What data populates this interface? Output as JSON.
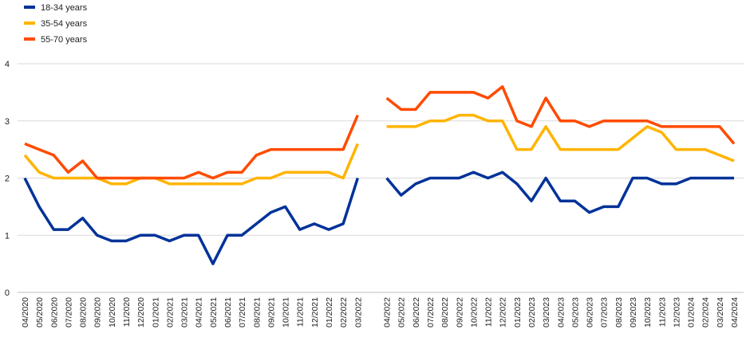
{
  "chart_data": {
    "type": "line",
    "categories": [
      "04/2020",
      "05/2020",
      "06/2020",
      "07/2020",
      "08/2020",
      "09/2020",
      "10/2020",
      "11/2020",
      "12/2020",
      "01/2021",
      "02/2021",
      "03/2021",
      "04/2021",
      "05/2021",
      "06/2021",
      "07/2021",
      "08/2021",
      "09/2021",
      "10/2021",
      "11/2021",
      "12/2021",
      "01/2022",
      "02/2022",
      "03/2022",
      null,
      "04/2022",
      "05/2022",
      "06/2022",
      "07/2022",
      "08/2022",
      "09/2022",
      "10/2022",
      "11/2022",
      "12/2022",
      "01/2023",
      "02/2023",
      "03/2023",
      "04/2023",
      "05/2023",
      "06/2023",
      "07/2023",
      "08/2023",
      "09/2023",
      "10/2023",
      "11/2023",
      "12/2023",
      "01/2024",
      "02/2024",
      "03/2024",
      "04/2024"
    ],
    "series": [
      {
        "name": "18-34 years",
        "color": "#003299",
        "values": [
          2.0,
          1.5,
          1.1,
          1.1,
          1.3,
          1.0,
          0.9,
          0.9,
          1.0,
          1.0,
          0.9,
          1.0,
          1.0,
          0.5,
          1.0,
          1.0,
          1.2,
          1.4,
          1.5,
          1.1,
          1.2,
          1.1,
          1.2,
          2.0,
          null,
          2.0,
          1.7,
          1.9,
          2.0,
          2.0,
          2.0,
          2.1,
          2.0,
          2.1,
          1.9,
          1.6,
          2.0,
          1.6,
          1.6,
          1.4,
          1.5,
          1.5,
          2.0,
          2.0,
          1.9,
          1.9,
          2.0,
          2.0,
          2.0,
          2.0
        ]
      },
      {
        "name": "35-54 years",
        "color": "#ffb400",
        "values": [
          2.4,
          2.1,
          2.0,
          2.0,
          2.0,
          2.0,
          1.9,
          1.9,
          2.0,
          2.0,
          1.9,
          1.9,
          1.9,
          1.9,
          1.9,
          1.9,
          2.0,
          2.0,
          2.1,
          2.1,
          2.1,
          2.1,
          2.0,
          2.6,
          null,
          2.9,
          2.9,
          2.9,
          3.0,
          3.0,
          3.1,
          3.1,
          3.0,
          3.0,
          2.5,
          2.5,
          2.9,
          2.5,
          2.5,
          2.5,
          2.5,
          2.5,
          2.7,
          2.9,
          2.8,
          2.5,
          2.5,
          2.5,
          2.4,
          2.3
        ]
      },
      {
        "name": "55-70 years",
        "color": "#ff4b00",
        "values": [
          2.6,
          2.5,
          2.4,
          2.1,
          2.3,
          2.0,
          2.0,
          2.0,
          2.0,
          2.0,
          2.0,
          2.0,
          2.1,
          2.0,
          2.1,
          2.1,
          2.4,
          2.5,
          2.5,
          2.5,
          2.5,
          2.5,
          2.5,
          3.1,
          null,
          3.4,
          3.2,
          3.2,
          3.5,
          3.5,
          3.5,
          3.5,
          3.4,
          3.6,
          3.0,
          2.9,
          3.4,
          3.0,
          3.0,
          2.9,
          3.0,
          3.0,
          3.0,
          3.0,
          2.9,
          2.9,
          2.9,
          2.9,
          2.9,
          2.6
        ]
      }
    ],
    "ylim": [
      0,
      4
    ],
    "yticks": [
      0,
      1,
      2,
      3,
      4
    ],
    "grid": true,
    "legend": "top-left"
  }
}
